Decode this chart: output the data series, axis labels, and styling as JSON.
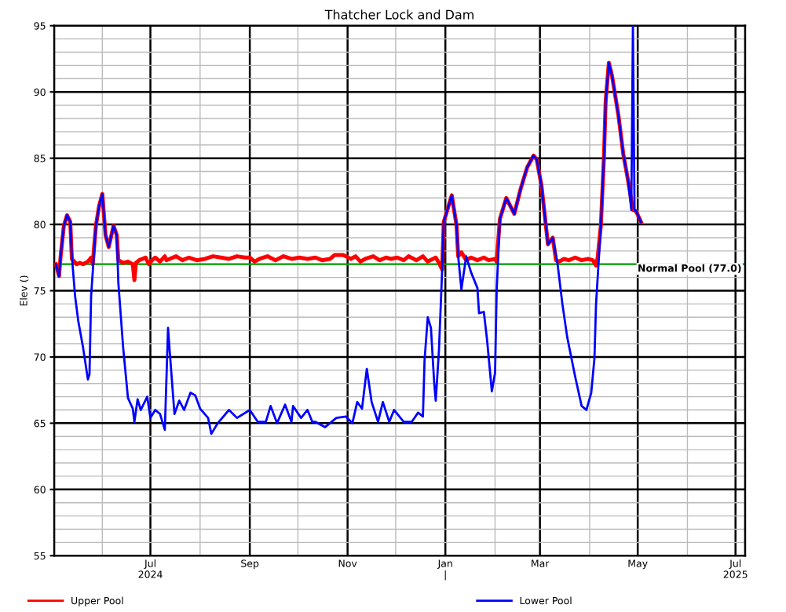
{
  "chart_data": {
    "type": "line",
    "title": "Thatcher Lock and Dam",
    "ylabel": "Elev ()",
    "series": [
      {
        "name": "Upper Pool",
        "color": "#ff0000",
        "x": [
          "2024-05-03",
          "2024-05-05",
          "2024-05-06",
          "2024-05-08",
          "2024-05-10",
          "2024-05-12",
          "2024-05-13",
          "2024-05-16",
          "2024-05-18",
          "2024-05-20",
          "2024-05-23",
          "2024-05-25",
          "2024-05-26",
          "2024-05-28",
          "2024-05-30",
          "2024-06-01",
          "2024-06-03",
          "2024-06-05",
          "2024-06-08",
          "2024-06-10",
          "2024-06-11",
          "2024-06-14",
          "2024-06-17",
          "2024-06-20",
          "2024-06-21",
          "2024-06-22",
          "2024-06-24",
          "2024-06-28",
          "2024-06-30",
          "2024-07-02",
          "2024-07-04",
          "2024-07-07",
          "2024-07-10",
          "2024-07-11",
          "2024-07-13",
          "2024-07-17",
          "2024-07-21",
          "2024-07-25",
          "2024-07-30",
          "2024-08-04",
          "2024-08-09",
          "2024-08-14",
          "2024-08-19",
          "2024-08-24",
          "2024-08-29",
          "2024-09-01",
          "2024-09-04",
          "2024-09-07",
          "2024-09-12",
          "2024-09-17",
          "2024-09-22",
          "2024-09-27",
          "2024-10-02",
          "2024-10-07",
          "2024-10-12",
          "2024-10-16",
          "2024-10-21",
          "2024-10-24",
          "2024-10-29",
          "2024-10-31",
          "2024-11-03",
          "2024-11-06",
          "2024-11-09",
          "2024-11-12",
          "2024-11-17",
          "2024-11-21",
          "2024-11-25",
          "2024-11-28",
          "2024-12-02",
          "2024-12-06",
          "2024-12-09",
          "2024-12-14",
          "2024-12-18",
          "2024-12-21",
          "2024-12-26",
          "2024-12-28",
          "2024-12-30",
          "2024-12-31",
          "2025-01-05",
          "2025-01-08",
          "2025-01-09",
          "2025-01-11",
          "2025-01-14",
          "2025-01-17",
          "2025-01-21",
          "2025-01-25",
          "2025-01-28",
          "2025-02-01",
          "2025-02-02",
          "2025-02-04",
          "2025-02-08",
          "2025-02-13",
          "2025-02-17",
          "2025-02-21",
          "2025-02-25",
          "2025-02-27",
          "2025-03-02",
          "2025-03-06",
          "2025-03-09",
          "2025-03-11",
          "2025-03-13",
          "2025-03-16",
          "2025-03-19",
          "2025-03-23",
          "2025-03-27",
          "2025-03-31",
          "2025-04-03",
          "2025-04-05",
          "2025-04-06",
          "2025-04-08",
          "2025-04-10",
          "2025-04-11",
          "2025-04-13",
          "2025-04-15",
          "2025-04-19",
          "2025-04-22",
          "2025-04-25",
          "2025-04-28",
          "2025-04-30",
          "2025-05-03"
        ],
        "values": [
          77.0,
          76.1,
          77.6,
          79.9,
          80.7,
          80.2,
          77.4,
          77.0,
          77.1,
          77.0,
          77.2,
          77.5,
          77.0,
          79.9,
          81.4,
          82.3,
          79.2,
          78.3,
          79.9,
          79.2,
          77.3,
          77.1,
          77.2,
          77.0,
          75.8,
          77.1,
          77.3,
          77.5,
          77.0,
          77.3,
          77.5,
          77.2,
          77.6,
          77.3,
          77.4,
          77.6,
          77.3,
          77.5,
          77.3,
          77.4,
          77.6,
          77.5,
          77.4,
          77.6,
          77.5,
          77.5,
          77.2,
          77.4,
          77.6,
          77.3,
          77.6,
          77.4,
          77.5,
          77.4,
          77.5,
          77.3,
          77.4,
          77.7,
          77.7,
          77.6,
          77.4,
          77.6,
          77.2,
          77.4,
          77.6,
          77.3,
          77.5,
          77.4,
          77.5,
          77.3,
          77.6,
          77.3,
          77.6,
          77.2,
          77.5,
          77.1,
          76.6,
          80.2,
          82.2,
          79.9,
          77.6,
          77.9,
          77.3,
          77.5,
          77.3,
          77.5,
          77.3,
          77.4,
          77.2,
          80.4,
          82.0,
          80.8,
          82.7,
          84.3,
          85.2,
          84.9,
          82.9,
          78.5,
          79.0,
          77.3,
          77.2,
          77.4,
          77.3,
          77.5,
          77.3,
          77.4,
          77.3,
          76.9,
          77.5,
          79.9,
          85.3,
          89.3,
          92.2,
          91.2,
          88.2,
          85.3,
          83.3,
          81.1,
          81.0,
          80.2
        ]
      },
      {
        "name": "Lower Pool",
        "color": "#0000ff",
        "x": [
          "2024-05-03",
          "2024-05-05",
          "2024-05-06",
          "2024-05-08",
          "2024-05-10",
          "2024-05-12",
          "2024-05-13",
          "2024-05-15",
          "2024-05-17",
          "2024-05-20",
          "2024-05-23",
          "2024-05-24",
          "2024-05-25",
          "2024-05-28",
          "2024-05-30",
          "2024-06-01",
          "2024-06-03",
          "2024-06-05",
          "2024-06-08",
          "2024-06-10",
          "2024-06-11",
          "2024-06-14",
          "2024-06-17",
          "2024-06-20",
          "2024-06-21",
          "2024-06-23",
          "2024-06-25",
          "2024-06-29",
          "2024-07-01",
          "2024-07-04",
          "2024-07-07",
          "2024-07-10",
          "2024-07-12",
          "2024-07-13",
          "2024-07-16",
          "2024-07-19",
          "2024-07-22",
          "2024-07-26",
          "2024-07-29",
          "2024-08-01",
          "2024-08-06",
          "2024-08-08",
          "2024-08-12",
          "2024-08-19",
          "2024-08-24",
          "2024-09-01",
          "2024-09-06",
          "2024-09-11",
          "2024-09-14",
          "2024-09-18",
          "2024-09-23",
          "2024-09-27",
          "2024-09-28",
          "2024-10-03",
          "2024-10-07",
          "2024-10-10",
          "2024-10-12",
          "2024-10-18",
          "2024-10-25",
          "2024-10-31",
          "2024-11-04",
          "2024-11-07",
          "2024-11-10",
          "2024-11-13",
          "2024-11-16",
          "2024-11-20",
          "2024-11-23",
          "2024-11-27",
          "2024-11-30",
          "2024-12-06",
          "2024-12-11",
          "2024-12-15",
          "2024-12-18",
          "2024-12-19",
          "2024-12-21",
          "2024-12-23",
          "2024-12-25",
          "2024-12-26",
          "2024-12-28",
          "2024-12-30",
          "2024-12-31",
          "2025-01-05",
          "2025-01-08",
          "2025-01-09",
          "2025-01-11",
          "2025-01-14",
          "2025-01-17",
          "2025-01-21",
          "2025-01-22",
          "2025-01-25",
          "2025-01-27",
          "2025-01-30",
          "2025-02-01",
          "2025-02-02",
          "2025-02-04",
          "2025-02-08",
          "2025-02-13",
          "2025-02-17",
          "2025-02-21",
          "2025-02-25",
          "2025-02-27",
          "2025-03-02",
          "2025-03-06",
          "2025-03-09",
          "2025-03-12",
          "2025-03-15",
          "2025-03-18",
          "2025-03-23",
          "2025-03-27",
          "2025-03-30",
          "2025-04-02",
          "2025-04-04",
          "2025-04-05",
          "2025-04-08",
          "2025-04-10",
          "2025-04-11",
          "2025-04-13",
          "2025-04-15",
          "2025-04-19",
          "2025-04-22",
          "2025-04-25",
          "2025-04-27",
          "2025-04-28",
          "2025-04-29",
          "2025-04-30",
          "2025-05-03"
        ],
        "values": [
          77.0,
          76.1,
          77.6,
          79.9,
          80.7,
          80.2,
          77.6,
          74.6,
          72.7,
          70.7,
          68.3,
          68.7,
          74.6,
          79.9,
          81.4,
          82.3,
          79.2,
          78.3,
          79.9,
          79.2,
          75.6,
          70.7,
          66.9,
          66.1,
          65.1,
          66.8,
          66.0,
          67.0,
          65.4,
          66.0,
          65.7,
          64.5,
          72.2,
          70.5,
          65.7,
          66.7,
          66.0,
          67.3,
          67.1,
          66.1,
          65.4,
          64.2,
          65.0,
          66.0,
          65.4,
          66.0,
          65.1,
          65.1,
          66.3,
          65.0,
          66.4,
          65.1,
          66.3,
          65.4,
          66.0,
          65.1,
          65.1,
          64.7,
          65.4,
          65.5,
          65.0,
          66.6,
          66.1,
          69.1,
          66.6,
          65.1,
          66.6,
          65.1,
          66.0,
          65.1,
          65.1,
          65.8,
          65.5,
          69.7,
          73.0,
          72.2,
          68.1,
          66.7,
          70.5,
          76.6,
          80.2,
          82.2,
          79.9,
          77.6,
          75.1,
          77.6,
          76.4,
          75.2,
          73.3,
          73.4,
          71.3,
          67.4,
          68.8,
          75.0,
          80.4,
          82.0,
          80.8,
          82.7,
          84.3,
          85.2,
          84.9,
          82.9,
          78.5,
          79.0,
          77.0,
          74.0,
          71.5,
          68.5,
          66.3,
          66.0,
          67.3,
          69.9,
          74.0,
          79.9,
          85.3,
          89.3,
          92.2,
          91.2,
          88.2,
          85.3,
          83.3,
          81.1,
          95,
          81.1,
          81.0,
          80.2
        ]
      }
    ],
    "ref_lines": [
      {
        "axis": "y",
        "value": 77.0,
        "label": "Normal Pool (77.0)",
        "color": "#00a000",
        "line_style": "solid"
      }
    ],
    "xlim": [
      "2024-05-02",
      "2025-07-07"
    ],
    "xticks": [
      {
        "value": "2024-06-01",
        "label": null
      },
      {
        "value": "2024-07-01",
        "label": "Jul\n2024"
      },
      {
        "value": "2024-08-01",
        "label": null
      },
      {
        "value": "2024-09-01",
        "label": "Sep"
      },
      {
        "value": "2024-10-01",
        "label": null
      },
      {
        "value": "2024-11-01",
        "label": "Nov"
      },
      {
        "value": "2024-12-01",
        "label": null
      },
      {
        "value": "2025-01-01",
        "label": "Jan\n|"
      },
      {
        "value": "2025-02-01",
        "label": null
      },
      {
        "value": "2025-03-01",
        "label": "Mar"
      },
      {
        "value": "2025-04-01",
        "label": null
      },
      {
        "value": "2025-05-01",
        "label": "May"
      },
      {
        "value": "2025-06-01",
        "label": null
      },
      {
        "value": "2025-07-01",
        "label": "Jul\n2025"
      }
    ],
    "ylim": [
      55,
      95
    ],
    "yticks": [
      55,
      {
        "value": 56,
        "label": null
      },
      {
        "value": 57,
        "label": null
      },
      {
        "value": 58,
        "label": null
      },
      {
        "value": 59,
        "label": null
      },
      60,
      {
        "value": 61,
        "label": null
      },
      {
        "value": 62,
        "label": null
      },
      {
        "value": 63,
        "label": null
      },
      {
        "value": 64,
        "label": null
      },
      65,
      {
        "value": 66,
        "label": null
      },
      {
        "value": 67,
        "label": null
      },
      {
        "value": 68,
        "label": null
      },
      {
        "value": 69,
        "label": null
      },
      70,
      {
        "value": 71,
        "label": null
      },
      {
        "value": 72,
        "label": null
      },
      {
        "value": 73,
        "label": null
      },
      {
        "value": 74,
        "label": null
      },
      75,
      {
        "value": 76,
        "label": null
      },
      {
        "value": 77,
        "label": null
      },
      {
        "value": 78,
        "label": null
      },
      {
        "value": 79,
        "label": null
      },
      80,
      {
        "value": 81,
        "label": null
      },
      {
        "value": 82,
        "label": null
      },
      {
        "value": 83,
        "label": null
      },
      {
        "value": 84,
        "label": null
      },
      85,
      {
        "value": 86,
        "label": null
      },
      {
        "value": 87,
        "label": null
      },
      {
        "value": 88,
        "label": null
      },
      {
        "value": 89,
        "label": null
      },
      90,
      {
        "value": 91,
        "label": null
      },
      {
        "value": 92,
        "label": null
      },
      {
        "value": 93,
        "label": null
      },
      {
        "value": 94,
        "label": null
      },
      95
    ],
    "grid": true,
    "legend": "bottom",
    "marker": "none",
    "line_style": "solid"
  }
}
